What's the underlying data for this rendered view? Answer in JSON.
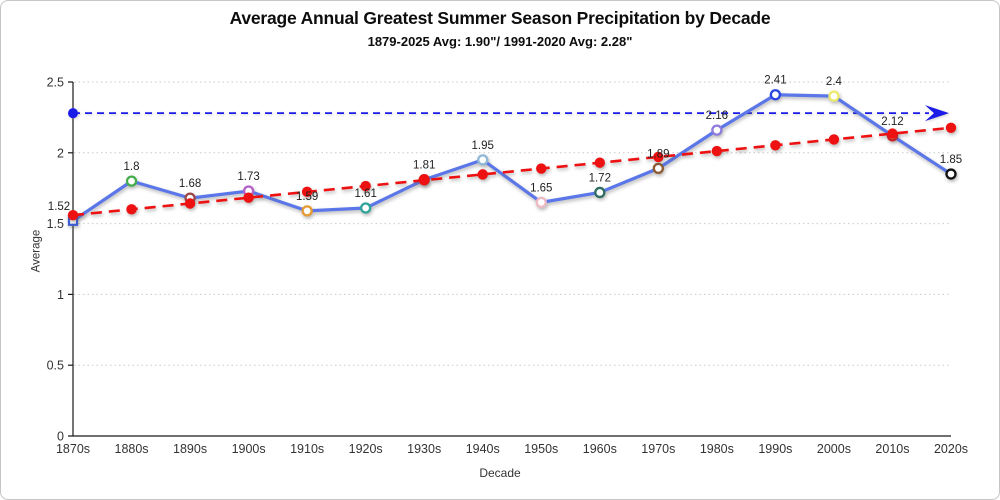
{
  "chart_data": {
    "type": "line",
    "title": "Average Annual Greatest Summer Season Precipitation by Decade",
    "subtitle": "1879-2025 Avg: 1.90\"/ 1991-2020 Avg: 2.28\"",
    "xlabel": "Decade",
    "ylabel": "Average",
    "categories": [
      "1870s",
      "1880s",
      "1890s",
      "1900s",
      "1910s",
      "1920s",
      "1930s",
      "1940s",
      "1950s",
      "1960s",
      "1970s",
      "1980s",
      "1990s",
      "2000s",
      "2010s",
      "2020s"
    ],
    "series": [
      {
        "name": "Average annual greatest summer season precipitation",
        "values": [
          1.52,
          1.8,
          1.68,
          1.73,
          1.59,
          1.61,
          1.81,
          1.95,
          1.65,
          1.72,
          1.89,
          2.16,
          2.41,
          2.4,
          2.12,
          1.85
        ],
        "labels": [
          "1.52",
          "1.8",
          "1.68",
          "1.73",
          "1.59",
          "1.61",
          "1.81",
          "1.95",
          "1.65",
          "1.72",
          "1.89",
          "2.16",
          "2.41",
          "2.4",
          "2.12",
          "1.85"
        ],
        "line_color": "#5B76E8",
        "marker_fill": "#ffffff",
        "marker_colors": [
          "#3B5BD6",
          "#44AD4B",
          "#9A4847",
          "#B55FC9",
          "#E59A33",
          "#2FA39A",
          "#EE1111",
          "#8FB8D8",
          "#EFB9C4",
          "#2E6E62",
          "#8E5B31",
          "#8F7BDE",
          "#2A46E0",
          "#EDE96A",
          "#EE1111",
          "#111111"
        ],
        "marker_shapes": [
          "square",
          "circle",
          "circle",
          "circle",
          "circle",
          "circle",
          "circle",
          "circle",
          "circle",
          "circle",
          "circle",
          "circle",
          "circle",
          "circle",
          "circle",
          "circle"
        ]
      }
    ],
    "trendline": {
      "type": "linear-regression",
      "style": "dashed",
      "color": "#EE1111",
      "marker": "filled-circle"
    },
    "reference_line": {
      "value": 2.28,
      "style": "dashed",
      "color": "#1C1CE8",
      "start_marker": "filled-circle",
      "end_marker": "arrow"
    },
    "ylim": [
      0,
      2.5
    ],
    "yticks": [
      0,
      0.5,
      1,
      1.5,
      2,
      2.5
    ],
    "ytick_labels": [
      "0",
      "0.5",
      "1",
      "1.5",
      "2",
      "2.5"
    ],
    "grid": "horizontal-dotted",
    "legend": "none"
  }
}
